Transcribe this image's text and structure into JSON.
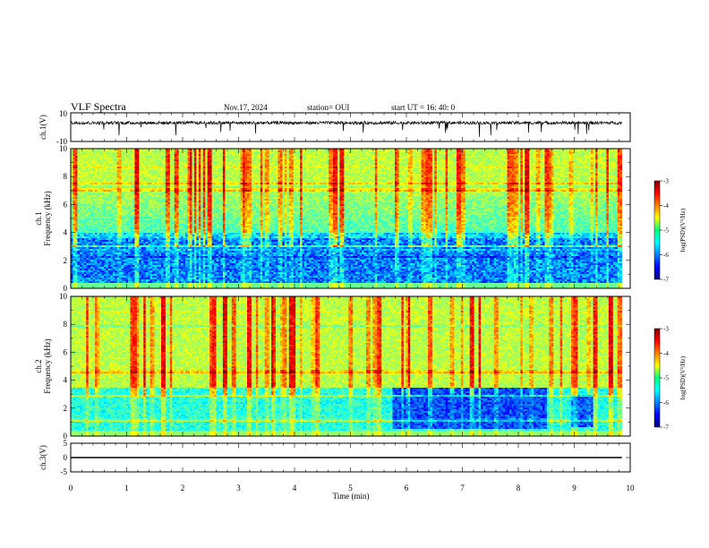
{
  "header": {
    "title": "VLF Spectra",
    "date": "Nov.17, 2024",
    "station": "station= OUI",
    "start_ut": "start  UT =   16: 40: 0"
  },
  "chart_data": [
    {
      "type": "line",
      "name": "ch1-waveform",
      "ylabel": "ch.1(V)",
      "ylim": [
        -10,
        10
      ],
      "y_ticks": [
        "10",
        "-10"
      ],
      "baseline": 3,
      "xlim": [
        0,
        10
      ]
    },
    {
      "type": "heatmap",
      "name": "ch1-spectrogram",
      "ylabel": "ch.1\nFrequency (kHz)",
      "ylim": [
        0,
        10
      ],
      "xlim": [
        0,
        10
      ],
      "y_ticks": [
        "0",
        "2",
        "4",
        "6",
        "8",
        "10"
      ],
      "data_end_min": 9.85,
      "dark_band_khz": [
        0.5,
        4.0
      ],
      "colorbar": {
        "label": "log(PSD)(V²/Hz)",
        "ticks": [
          "-3",
          "-4",
          "-5",
          "-6",
          "-7"
        ],
        "range": [
          -7,
          -3
        ]
      }
    },
    {
      "type": "heatmap",
      "name": "ch2-spectrogram",
      "ylabel": "ch.2\nFrequency (kHz)",
      "ylim": [
        0,
        10
      ],
      "xlim": [
        0,
        10
      ],
      "y_ticks": [
        "0",
        "2",
        "4",
        "6",
        "8",
        "10"
      ],
      "data_end_min": 9.85,
      "dark_region": {
        "x_min": [
          5.75,
          8.5
        ],
        "y_khz": [
          0.5,
          3.5
        ]
      },
      "colorbar": {
        "label": "log(PSD)(V²/Hz)",
        "ticks": [
          "-3",
          "-4",
          "-5",
          "-6",
          "-7"
        ],
        "range": [
          -7,
          -3
        ]
      }
    },
    {
      "type": "line",
      "name": "ch3-waveform",
      "ylabel": "ch.3(V)",
      "ylim": [
        -5,
        5
      ],
      "y_ticks": [
        "5",
        "0",
        "-5"
      ],
      "baseline": 0,
      "xlim": [
        0,
        10
      ],
      "x_ticks": [
        "0",
        "1",
        "2",
        "3",
        "4",
        "5",
        "6",
        "7",
        "8",
        "9",
        "10"
      ],
      "xlabel": "Time  (min)"
    }
  ],
  "colors": {
    "jet_low": "#00007f",
    "jet_high": "#7f0000",
    "axis": "#000000"
  }
}
